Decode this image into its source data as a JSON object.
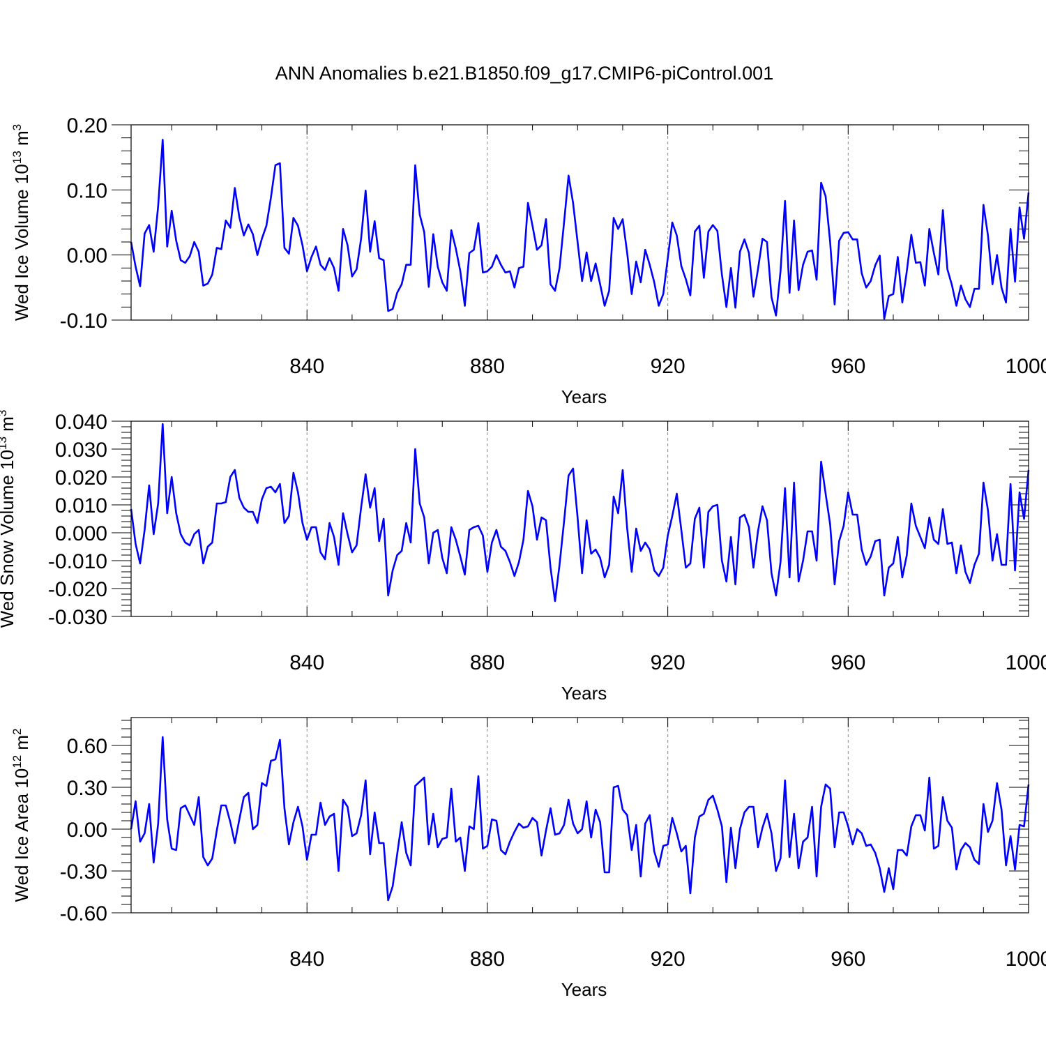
{
  "title": "ANN Anomalies b.e21.B1850.f09_g17.CMIP6-piControl.001",
  "chart_data": [
    {
      "type": "line",
      "ylabel": "Wed Ice Volume",
      "unit_base": "10",
      "unit_exp": "13",
      "unit_name": "m",
      "unit_name_exp": "3",
      "xlabel": "Years",
      "xlim": [
        801,
        1000
      ],
      "ylim": [
        -0.1,
        0.2
      ],
      "ytick_labels": [
        "0.20",
        "0.10",
        "0.00",
        "-0.10"
      ],
      "ytick_values": [
        0.2,
        0.1,
        0.0,
        -0.1
      ],
      "xtick_labels": [
        "840",
        "880",
        "920",
        "960",
        "1000"
      ],
      "xtick_values": [
        840,
        880,
        920,
        960,
        1000
      ],
      "grid": "dashed vertical at x ticks",
      "color": "#0000ff",
      "x_start": 801,
      "values": [
        0.02,
        -0.018,
        -0.048,
        0.033,
        0.046,
        0.005,
        0.075,
        0.177,
        0.013,
        0.068,
        0.022,
        -0.008,
        -0.012,
        -0.002,
        0.02,
        0.005,
        -0.047,
        -0.044,
        -0.03,
        0.011,
        0.009,
        0.053,
        0.042,
        0.103,
        0.058,
        0.03,
        0.047,
        0.032,
        0.0,
        0.025,
        0.045,
        0.088,
        0.138,
        0.141,
        0.011,
        0.002,
        0.057,
        0.045,
        0.015,
        -0.025,
        -0.003,
        0.013,
        -0.015,
        -0.023,
        -0.005,
        -0.02,
        -0.055,
        0.04,
        0.015,
        -0.033,
        -0.022,
        0.025,
        0.099,
        0.005,
        0.052,
        -0.005,
        -0.008,
        -0.086,
        -0.083,
        -0.058,
        -0.045,
        -0.015,
        -0.015,
        0.138,
        0.062,
        0.035,
        -0.049,
        0.032,
        -0.018,
        -0.042,
        -0.055,
        0.038,
        0.01,
        -0.025,
        -0.078,
        0.003,
        0.008,
        0.049,
        -0.027,
        -0.025,
        -0.018,
        0.0,
        -0.015,
        -0.027,
        -0.025,
        -0.05,
        -0.02,
        -0.018,
        0.08,
        0.045,
        0.008,
        0.015,
        0.055,
        -0.045,
        -0.055,
        -0.02,
        0.05,
        0.122,
        0.08,
        0.02,
        -0.04,
        0.004,
        -0.04,
        -0.013,
        -0.045,
        -0.078,
        -0.055,
        0.057,
        0.04,
        0.055,
        0.003,
        -0.06,
        -0.01,
        -0.042,
        0.008,
        -0.015,
        -0.042,
        -0.078,
        -0.06,
        -0.005,
        0.05,
        0.03,
        -0.017,
        -0.037,
        -0.062,
        0.036,
        0.045,
        -0.035,
        0.036,
        0.046,
        0.037,
        -0.03,
        -0.08,
        -0.02,
        -0.081,
        0.005,
        0.024,
        0.003,
        -0.064,
        -0.022,
        0.025,
        0.02,
        -0.065,
        -0.093,
        -0.025,
        0.083,
        -0.058,
        0.053,
        -0.054,
        -0.015,
        0.005,
        0.007,
        -0.038,
        0.111,
        0.09,
        0.02,
        -0.076,
        0.022,
        0.034,
        0.035,
        0.024,
        0.024,
        -0.028,
        -0.05,
        -0.04,
        -0.016,
        -0.001,
        -0.098,
        -0.063,
        -0.06,
        -0.003,
        -0.073,
        -0.025,
        0.031,
        -0.012,
        -0.011,
        -0.047,
        0.04,
        0.003,
        -0.03,
        0.069,
        -0.022,
        -0.046,
        -0.078,
        -0.047,
        -0.068,
        -0.08,
        -0.052,
        -0.052,
        0.077,
        0.03,
        -0.045,
        0.0,
        -0.05,
        -0.073,
        0.04,
        -0.041,
        0.073,
        0.025,
        0.096
      ]
    },
    {
      "type": "line",
      "ylabel": "Wed Snow Volume",
      "unit_base": "10",
      "unit_exp": "13",
      "unit_name": "m",
      "unit_name_exp": "3",
      "xlabel": "Years",
      "xlim": [
        801,
        1000
      ],
      "ylim": [
        -0.03,
        0.04
      ],
      "ytick_labels": [
        "0.040",
        "0.030",
        "0.020",
        "0.010",
        "0.000",
        "-0.010",
        "-0.020",
        "-0.030"
      ],
      "ytick_values": [
        0.04,
        0.03,
        0.02,
        0.01,
        0.0,
        -0.01,
        -0.02,
        -0.03
      ],
      "xtick_labels": [
        "840",
        "880",
        "920",
        "960",
        "1000"
      ],
      "xtick_values": [
        840,
        880,
        920,
        960,
        1000
      ],
      "grid": "dashed vertical at x ticks",
      "color": "#0000ff",
      "x_start": 801,
      "values": [
        0.0085,
        -0.004,
        -0.011,
        0.001,
        0.017,
        -0.0005,
        0.0105,
        0.039,
        0.007,
        0.02,
        0.007,
        -0.0005,
        -0.0035,
        -0.0045,
        -0.0005,
        0.001,
        -0.011,
        -0.005,
        -0.0035,
        0.0105,
        0.0105,
        0.011,
        0.02,
        0.0225,
        0.0125,
        0.009,
        0.0075,
        0.0075,
        0.0035,
        0.012,
        0.016,
        0.0165,
        0.0145,
        0.0175,
        0.0035,
        0.006,
        0.0215,
        0.0145,
        0.0035,
        -0.0025,
        0.002,
        0.002,
        -0.007,
        -0.0095,
        0.0035,
        -0.0015,
        -0.0115,
        0.007,
        -0.0005,
        -0.007,
        -0.0045,
        0.009,
        0.021,
        0.009,
        0.016,
        -0.003,
        0.005,
        -0.0225,
        -0.0135,
        -0.008,
        -0.0065,
        0.0035,
        -0.0035,
        0.03,
        0.0105,
        0.0055,
        -0.011,
        0.0,
        0.001,
        -0.009,
        -0.0145,
        0.002,
        -0.0025,
        -0.0085,
        -0.015,
        0.001,
        0.002,
        0.0025,
        -0.001,
        -0.014,
        -0.0035,
        0.001,
        -0.005,
        -0.0065,
        -0.0105,
        -0.0155,
        -0.0105,
        -0.0025,
        0.015,
        0.0095,
        -0.0025,
        0.0055,
        0.0045,
        -0.0125,
        -0.0245,
        -0.0115,
        0.004,
        0.0205,
        0.023,
        0.0055,
        -0.0145,
        0.0045,
        -0.0075,
        -0.006,
        -0.009,
        -0.016,
        -0.0115,
        0.013,
        0.007,
        0.0225,
        0.0015,
        -0.014,
        0.0015,
        -0.0065,
        -0.0035,
        -0.006,
        -0.0135,
        -0.0155,
        -0.0125,
        -0.001,
        0.006,
        0.014,
        0.001,
        -0.0125,
        -0.011,
        0.005,
        0.009,
        -0.0125,
        0.0075,
        0.0095,
        0.01,
        -0.01,
        -0.0175,
        -0.0015,
        -0.0185,
        0.0055,
        0.0065,
        0.002,
        -0.0125,
        0.0005,
        0.0095,
        0.0045,
        -0.0145,
        -0.0225,
        -0.0105,
        0.016,
        -0.016,
        0.018,
        -0.0175,
        -0.01,
        0.0005,
        0.0005,
        -0.01,
        0.0255,
        0.014,
        0.003,
        -0.0185,
        -0.003,
        0.0025,
        0.0145,
        0.0065,
        0.0065,
        -0.006,
        -0.0115,
        -0.0085,
        -0.003,
        -0.0025,
        -0.0225,
        -0.0125,
        -0.011,
        -0.0015,
        -0.016,
        -0.008,
        0.0105,
        0.0025,
        -0.0015,
        -0.0055,
        0.0055,
        -0.0025,
        -0.004,
        0.0085,
        -0.004,
        -0.0035,
        -0.0145,
        -0.0045,
        -0.014,
        -0.018,
        -0.0115,
        -0.0075,
        0.018,
        0.008,
        -0.01,
        -0.0005,
        -0.0115,
        -0.0115,
        0.0175,
        -0.0135,
        0.0145,
        0.005,
        0.0225
      ]
    },
    {
      "type": "line",
      "ylabel": "Wed Ice Area",
      "unit_base": "10",
      "unit_exp": "12",
      "unit_name": "m",
      "unit_name_exp": "2",
      "xlabel": "Years",
      "xlim": [
        801,
        1000
      ],
      "ylim": [
        -0.6,
        0.8
      ],
      "ytick_labels": [
        "0.60",
        "0.30",
        "0.00",
        "-0.30",
        "-0.60"
      ],
      "ytick_values": [
        0.6,
        0.3,
        0.0,
        -0.3,
        -0.6
      ],
      "xtick_labels": [
        "840",
        "880",
        "920",
        "960",
        "1000"
      ],
      "xtick_values": [
        840,
        880,
        920,
        960,
        1000
      ],
      "grid": "dashed vertical at x ticks",
      "color": "#0000ff",
      "x_start": 801,
      "values": [
        0.0,
        0.2,
        -0.09,
        -0.03,
        0.18,
        -0.24,
        0.04,
        0.66,
        0.07,
        -0.14,
        -0.15,
        0.15,
        0.17,
        0.1,
        0.03,
        0.23,
        -0.2,
        -0.26,
        -0.21,
        -0.01,
        0.17,
        0.17,
        0.05,
        -0.1,
        0.07,
        0.23,
        0.26,
        0.0,
        0.03,
        0.33,
        0.31,
        0.49,
        0.5,
        0.64,
        0.15,
        -0.11,
        0.05,
        0.16,
        0.02,
        -0.22,
        -0.04,
        -0.04,
        0.19,
        0.03,
        0.09,
        0.11,
        -0.3,
        0.21,
        0.16,
        -0.05,
        -0.03,
        0.1,
        0.35,
        -0.18,
        0.12,
        -0.1,
        -0.1,
        -0.51,
        -0.41,
        -0.18,
        0.05,
        -0.17,
        -0.26,
        0.31,
        0.34,
        0.37,
        -0.11,
        0.11,
        -0.13,
        -0.07,
        -0.06,
        0.29,
        -0.09,
        -0.06,
        -0.3,
        0.02,
        0.0,
        0.38,
        -0.14,
        -0.12,
        0.07,
        0.06,
        -0.15,
        -0.18,
        -0.09,
        -0.02,
        0.04,
        0.01,
        0.02,
        0.08,
        0.05,
        -0.19,
        -0.01,
        0.15,
        -0.04,
        -0.03,
        0.03,
        0.21,
        0.04,
        -0.03,
        0.0,
        0.2,
        -0.06,
        0.14,
        0.05,
        -0.31,
        -0.31,
        0.3,
        0.31,
        0.14,
        0.1,
        -0.15,
        0.03,
        -0.34,
        0.04,
        0.1,
        -0.16,
        -0.27,
        -0.12,
        -0.11,
        0.08,
        -0.03,
        -0.16,
        -0.12,
        -0.46,
        -0.06,
        0.09,
        0.11,
        0.21,
        0.24,
        0.14,
        0.02,
        -0.38,
        0.01,
        -0.28,
        0.0,
        0.12,
        0.16,
        0.16,
        -0.13,
        0.01,
        0.11,
        -0.03,
        -0.3,
        -0.21,
        0.35,
        -0.2,
        0.11,
        -0.28,
        -0.09,
        -0.06,
        0.16,
        -0.34,
        0.16,
        0.32,
        0.29,
        -0.13,
        0.12,
        0.12,
        0.02,
        -0.11,
        0.0,
        -0.03,
        -0.12,
        -0.11,
        -0.17,
        -0.28,
        -0.45,
        -0.28,
        -0.43,
        -0.15,
        -0.15,
        -0.19,
        0.02,
        0.1,
        0.1,
        -0.01,
        0.37,
        -0.14,
        -0.12,
        0.23,
        0.06,
        0.01,
        -0.29,
        -0.15,
        -0.1,
        -0.13,
        -0.22,
        -0.25,
        0.18,
        -0.02,
        0.06,
        0.33,
        0.14,
        -0.26,
        -0.05,
        -0.29,
        0.03,
        0.02,
        0.32
      ]
    }
  ]
}
